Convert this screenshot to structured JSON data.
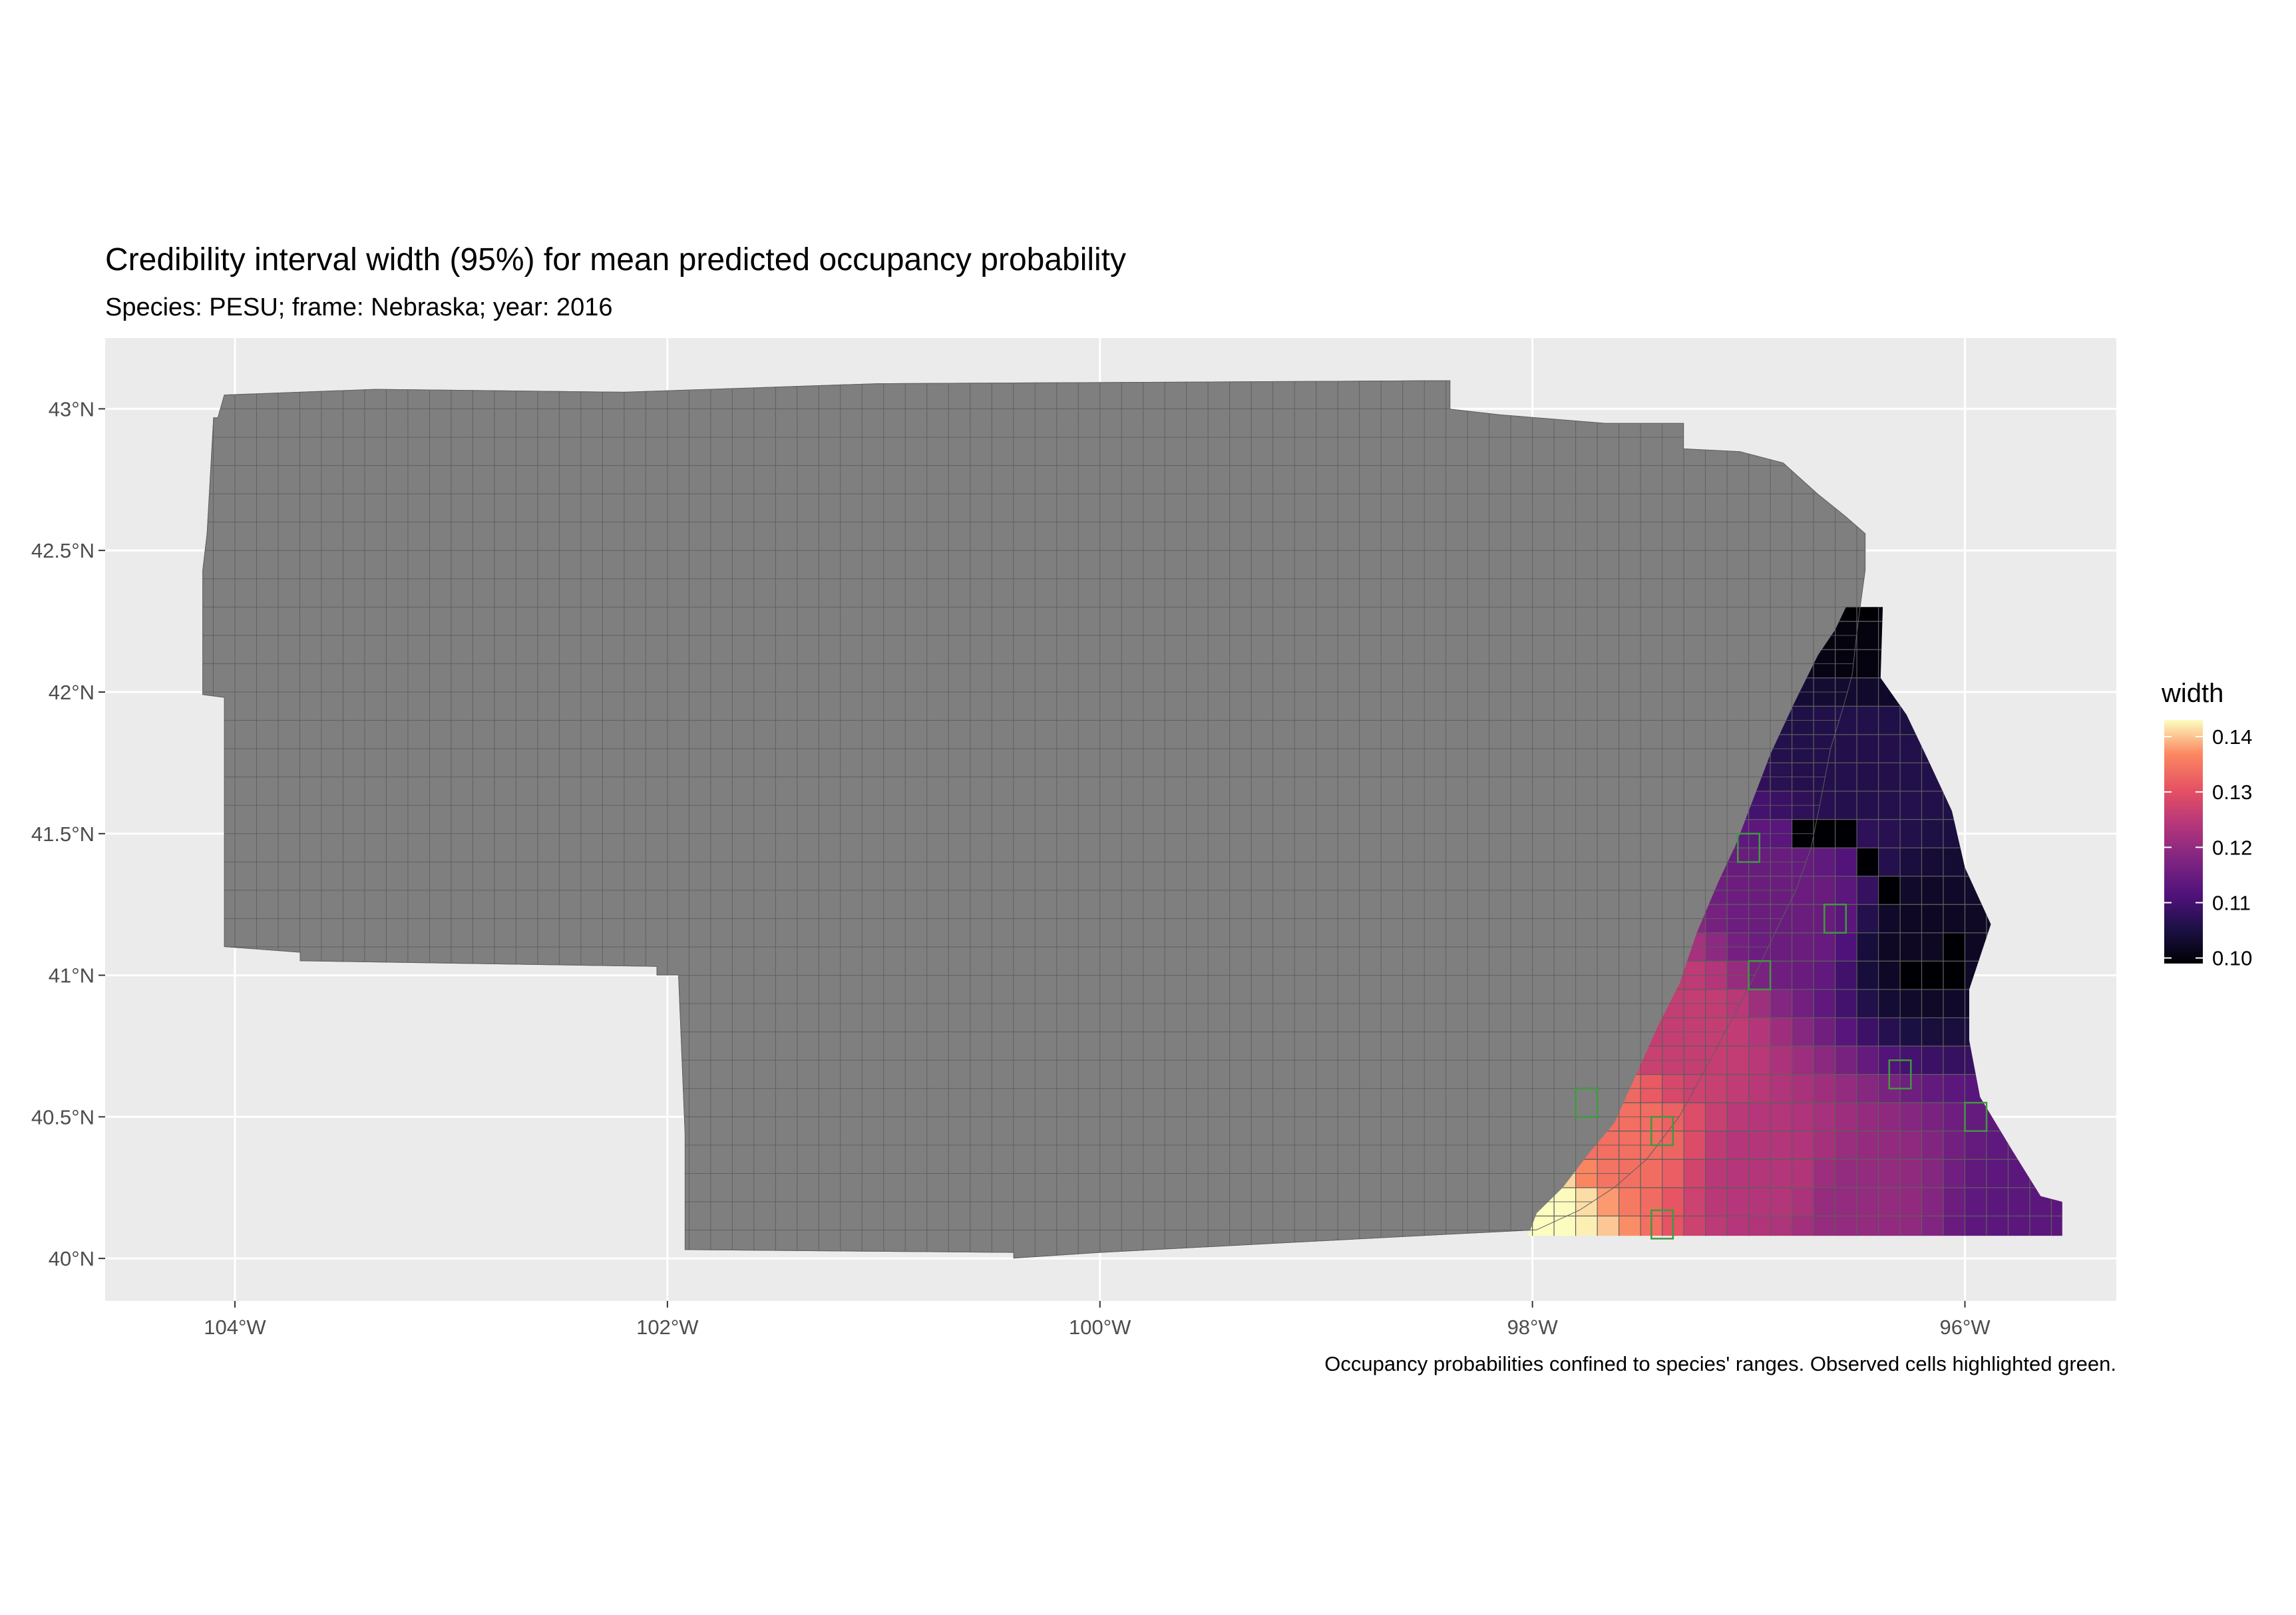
{
  "title": "Credibility interval width (95%) for mean predicted occupancy probability",
  "subtitle": "Species: PESU; frame: Nebraska; year: 2016",
  "caption": "Occupancy probabilities confined to species' ranges. Observed cells highlighted green.",
  "colors": {
    "panel_background": "#ebebeb",
    "gridline": "#ffffff",
    "out_of_range_cell": "#7f7f7f",
    "cell_border": "#5e5e5e",
    "observed_cell_border": "#3f9a3f"
  },
  "chart_data": {
    "type": "heatmap",
    "title": "Credibility interval width (95%) for mean predicted occupancy probability",
    "subtitle": "Species: PESU; frame: Nebraska; year: 2016",
    "xlim": [
      -104.6,
      -95.3
    ],
    "ylim": [
      39.85,
      43.25
    ],
    "x_ticks": [
      -104,
      -102,
      -100,
      -98,
      -96
    ],
    "x_tick_labels": [
      "104°W",
      "102°W",
      "100°W",
      "98°W",
      "96°W"
    ],
    "y_ticks": [
      40,
      40.5,
      41,
      41.5,
      42,
      42.5,
      43
    ],
    "y_tick_labels": [
      "40°N",
      "40.5°N",
      "41°N",
      "41.5°N",
      "42°N",
      "42.5°N",
      "43°N"
    ],
    "grid": true,
    "cell_size_degrees": 0.1,
    "colorscale": "magma",
    "legend": {
      "title": "width",
      "position": "right",
      "range": [
        0.099,
        0.143
      ],
      "ticks": [
        0.1,
        0.11,
        0.12,
        0.13,
        0.14
      ],
      "tick_labels": [
        "0.10",
        "0.11",
        "0.12",
        "0.13",
        "0.14"
      ]
    },
    "frame_outline_lonlat": [
      [
        -104.08,
        42.97
      ],
      [
        -104.05,
        43.05
      ],
      [
        -103.35,
        43.07
      ],
      [
        -102.2,
        43.06
      ],
      [
        -101.03,
        43.09
      ],
      [
        -98.5,
        43.1
      ],
      [
        -98.38,
        43.1
      ],
      [
        -98.38,
        43.0
      ],
      [
        -98.15,
        42.98
      ],
      [
        -97.66,
        42.95
      ],
      [
        -97.3,
        42.95
      ],
      [
        -97.3,
        42.86
      ],
      [
        -97.04,
        42.85
      ],
      [
        -96.84,
        42.81
      ],
      [
        -96.68,
        42.7
      ],
      [
        -96.55,
        42.62
      ],
      [
        -96.46,
        42.56
      ],
      [
        -96.46,
        42.43
      ],
      [
        -96.48,
        42.32
      ],
      [
        -96.5,
        42.2
      ],
      [
        -96.52,
        42.06
      ],
      [
        -96.56,
        41.95
      ],
      [
        -96.62,
        41.8
      ],
      [
        -96.67,
        41.6
      ],
      [
        -96.71,
        41.45
      ],
      [
        -96.78,
        41.3
      ],
      [
        -96.87,
        41.16
      ],
      [
        -96.97,
        41.0
      ],
      [
        -97.08,
        40.84
      ],
      [
        -97.19,
        40.68
      ],
      [
        -97.32,
        40.5
      ],
      [
        -97.47,
        40.35
      ],
      [
        -97.62,
        40.25
      ],
      [
        -97.78,
        40.17
      ],
      [
        -97.98,
        40.1
      ],
      [
        -98.5,
        40.08
      ],
      [
        -99.0,
        40.06
      ],
      [
        -99.5,
        40.04
      ],
      [
        -100.0,
        40.02
      ],
      [
        -100.4,
        40.0
      ],
      [
        -100.4,
        40.02
      ],
      [
        -101.92,
        40.03
      ],
      [
        -101.92,
        40.44
      ],
      [
        -101.95,
        41.0
      ],
      [
        -102.05,
        41.0
      ],
      [
        -102.05,
        41.03
      ],
      [
        -103.7,
        41.05
      ],
      [
        -103.7,
        41.08
      ],
      [
        -104.05,
        41.1
      ],
      [
        -104.05,
        41.98
      ],
      [
        -104.15,
        41.99
      ],
      [
        -104.15,
        42.43
      ],
      [
        -104.13,
        42.56
      ],
      [
        -104.1,
        42.97
      ]
    ],
    "range_outline_lonlat": [
      [
        -96.55,
        42.3
      ],
      [
        -96.38,
        42.3
      ],
      [
        -96.39,
        42.05
      ],
      [
        -96.27,
        41.92
      ],
      [
        -96.17,
        41.76
      ],
      [
        -96.06,
        41.58
      ],
      [
        -96.0,
        41.38
      ],
      [
        -95.88,
        41.18
      ],
      [
        -95.98,
        40.95
      ],
      [
        -95.98,
        40.77
      ],
      [
        -95.93,
        40.57
      ],
      [
        -95.78,
        40.38
      ],
      [
        -95.65,
        40.22
      ],
      [
        -95.55,
        40.2
      ],
      [
        -95.55,
        40.08
      ],
      [
        -96.4,
        40.08
      ],
      [
        -97.3,
        40.08
      ],
      [
        -98.02,
        40.08
      ],
      [
        -97.98,
        40.16
      ],
      [
        -97.86,
        40.25
      ],
      [
        -97.74,
        40.37
      ],
      [
        -97.62,
        40.48
      ],
      [
        -97.52,
        40.65
      ],
      [
        -97.42,
        40.82
      ],
      [
        -97.32,
        40.97
      ],
      [
        -97.24,
        41.15
      ],
      [
        -97.14,
        41.33
      ],
      [
        -97.06,
        41.46
      ],
      [
        -96.98,
        41.62
      ],
      [
        -96.9,
        41.78
      ],
      [
        -96.79,
        41.96
      ],
      [
        -96.68,
        42.13
      ],
      [
        -96.6,
        42.22
      ]
    ],
    "observed_cells_lonlat": [
      [
        -97.0,
        41.45
      ],
      [
        -96.6,
        41.2
      ],
      [
        -96.95,
        41.0
      ],
      [
        -96.3,
        40.65
      ],
      [
        -95.95,
        40.5
      ],
      [
        -97.4,
        40.45
      ],
      [
        -97.75,
        40.55
      ],
      [
        -97.4,
        40.12
      ]
    ],
    "hotspot_low": [
      [
        -96.5,
        42.27
      ],
      [
        -96.72,
        41.48
      ],
      [
        -96.6,
        41.48
      ],
      [
        -96.45,
        41.38
      ],
      [
        -96.1,
        41.03
      ],
      [
        -96.25,
        41.03
      ],
      [
        -96.35,
        41.28
      ],
      [
        -96.02,
        41.05
      ]
    ],
    "value_field_anchors": [
      {
        "lon": -97.98,
        "lat": 40.15,
        "width": 0.143
      },
      {
        "lon": -97.6,
        "lat": 40.45,
        "width": 0.134
      },
      {
        "lon": -97.3,
        "lat": 40.8,
        "width": 0.126
      },
      {
        "lon": -96.9,
        "lat": 40.3,
        "width": 0.124
      },
      {
        "lon": -96.5,
        "lat": 40.2,
        "width": 0.12
      },
      {
        "lon": -95.7,
        "lat": 40.15,
        "width": 0.113
      },
      {
        "lon": -96.8,
        "lat": 41.2,
        "width": 0.115
      },
      {
        "lon": -96.5,
        "lat": 41.8,
        "width": 0.106
      },
      {
        "lon": -96.2,
        "lat": 41.1,
        "width": 0.102
      },
      {
        "lon": -96.45,
        "lat": 42.2,
        "width": 0.1
      }
    ]
  }
}
